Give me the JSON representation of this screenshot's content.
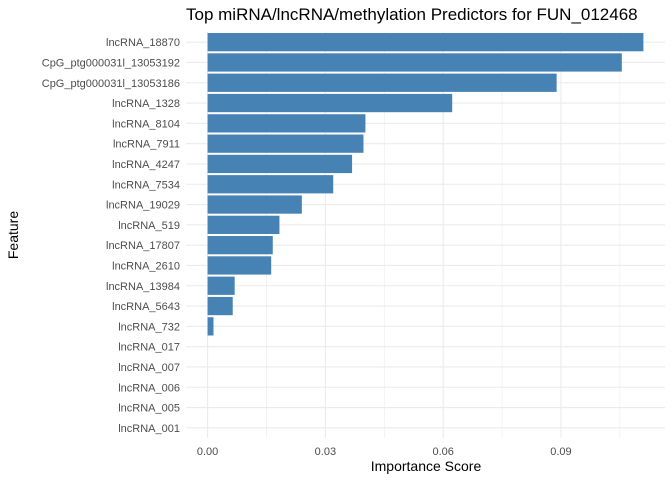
{
  "chart_data": {
    "type": "bar",
    "orientation": "horizontal",
    "title": "Top miRNA/lncRNA/methylation Predictors for FUN_012468",
    "xlabel": "Importance Score",
    "ylabel": "Feature",
    "categories": [
      "lncRNA_18870",
      "CpG_ptg000031l_13053192",
      "CpG_ptg000031l_13053186",
      "lncRNA_1328",
      "lncRNA_8104",
      "lncRNA_7911",
      "lncRNA_4247",
      "lncRNA_7534",
      "lncRNA_19029",
      "lncRNA_519",
      "lncRNA_17807",
      "lncRNA_2610",
      "lncRNA_13984",
      "lncRNA_5643",
      "lncRNA_732",
      "lncRNA_017",
      "lncRNA_007",
      "lncRNA_006",
      "lncRNA_005",
      "lncRNA_001"
    ],
    "values": [
      0.111,
      0.1055,
      0.0889,
      0.0623,
      0.0402,
      0.0397,
      0.0368,
      0.032,
      0.024,
      0.0183,
      0.0166,
      0.0162,
      0.0069,
      0.0064,
      0.0015,
      0,
      0,
      0,
      0,
      0
    ],
    "xticks": [
      0.0,
      0.03,
      0.06,
      0.09
    ],
    "xtick_labels": [
      "0.00",
      "0.03",
      "0.06",
      "0.09"
    ],
    "xlim": [
      -0.0055,
      0.1165
    ],
    "bar_color": "#4682b4",
    "grid": true,
    "legend": "none"
  }
}
